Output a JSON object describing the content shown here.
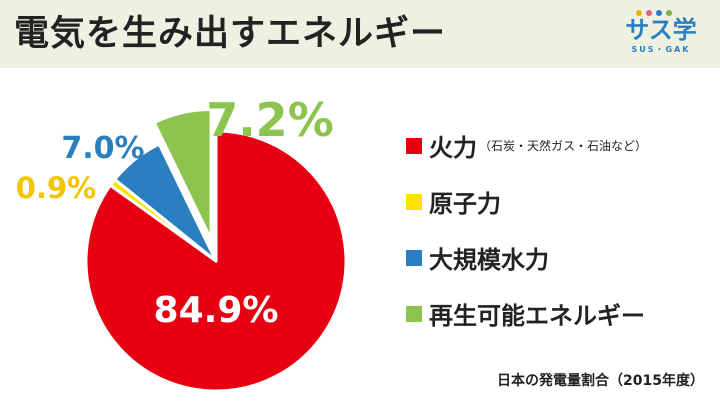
{
  "header": {
    "title": "電気を生み出すエネルギー"
  },
  "logo": {
    "text": "サス学",
    "subtext": "SUS・GAK",
    "dot_colors": [
      "#e8b400",
      "#e05a8a",
      "#2a7fc0",
      "#7cb342"
    ]
  },
  "chart_data": {
    "type": "pie",
    "start_angle_deg": 0,
    "direction": "clockwise",
    "slices": [
      {
        "name": "火力",
        "note": "（石炭・天然ガス・石油など）",
        "value": 84.9,
        "label": "84.9%",
        "color": "#e60012",
        "exploded": false
      },
      {
        "name": "原子力",
        "value": 0.9,
        "label": "0.9%",
        "color": "#ffe100",
        "exploded": false
      },
      {
        "name": "大規模水力",
        "value": 7.0,
        "label": "7.0%",
        "color": "#2a7fc0",
        "exploded": false
      },
      {
        "name": "再生可能エネルギー",
        "value": 7.2,
        "label": "7.2%",
        "color": "#8dc44e",
        "exploded": true
      }
    ],
    "footnote": "日本の発電量割合（2015年度）"
  }
}
